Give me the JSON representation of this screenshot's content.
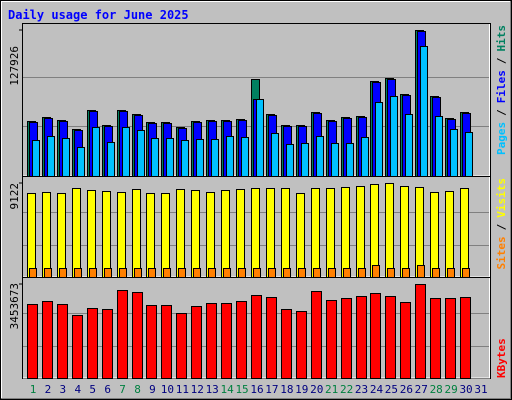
{
  "chart_data": [
    {
      "type": "bar",
      "title": "Daily usage for June 2025",
      "legend_separator": "/",
      "ylim": [
        0,
        127926
      ],
      "yticks": [
        127926
      ],
      "series": [
        {
          "name": "Hits",
          "color": "#008060",
          "values": [
            48191,
            51696,
            49067,
            41181,
            57829,
            44686,
            57829,
            54324,
            47315,
            47315,
            42934,
            48191,
            49067,
            49067,
            49943,
            84991,
            54324,
            44686,
            44686,
            56077,
            49067,
            51696,
            52572,
            83239,
            85867,
            71848,
            127926,
            70096,
            50820,
            56077,
            null
          ]
        },
        {
          "name": "Files",
          "color": "#0000ff",
          "values": [
            47315,
            50820,
            48191,
            40305,
            56953,
            43810,
            56953,
            53448,
            46439,
            46439,
            42058,
            47315,
            48191,
            48191,
            49067,
            67467,
            53448,
            43810,
            43810,
            55201,
            48191,
            50820,
            51696,
            82363,
            84991,
            70972,
            127050,
            69220,
            49943,
            55201,
            null
          ]
        },
        {
          "name": "Pages",
          "color": "#00c0ff",
          "values": [
            31543,
            35048,
            33296,
            25410,
            42934,
            29791,
            42934,
            40305,
            33296,
            33296,
            31543,
            32419,
            32419,
            35048,
            34172,
            67467,
            37677,
            28038,
            28915,
            35048,
            28915,
            28915,
            34172,
            64839,
            70096,
            54324,
            113906,
            52572,
            41181,
            38553,
            null
          ]
        }
      ]
    },
    {
      "type": "bar",
      "ylim": [
        0,
        9122
      ],
      "yticks": [
        9122
      ],
      "series": [
        {
          "name": "Visits",
          "color": "#ffff00",
          "values": [
            8142,
            8240,
            8142,
            8633,
            8437,
            8339,
            8240,
            8535,
            8142,
            8142,
            8535,
            8437,
            8240,
            8437,
            8535,
            8633,
            8633,
            8633,
            8142,
            8633,
            8633,
            8731,
            8829,
            9025,
            9122,
            8829,
            8731,
            8240,
            8339,
            8633,
            null
          ]
        },
        {
          "name": "Sites",
          "color": "#ff8000",
          "values": [
            883,
            883,
            883,
            883,
            883,
            883,
            883,
            883,
            883,
            883,
            883,
            883,
            883,
            883,
            883,
            883,
            883,
            883,
            883,
            883,
            883,
            883,
            883,
            1177,
            883,
            883,
            1177,
            883,
            883,
            883,
            null
          ]
        }
      ]
    },
    {
      "type": "bar",
      "ylim": [
        0,
        3453673
      ],
      "yticks": [
        3453673
      ],
      "categories": [
        "1",
        "2",
        "3",
        "4",
        "5",
        "6",
        "7",
        "8",
        "9",
        "10",
        "11",
        "12",
        "13",
        "14",
        "15",
        "16",
        "17",
        "18",
        "19",
        "20",
        "21",
        "22",
        "23",
        "24",
        "25",
        "26",
        "27",
        "28",
        "29",
        "30",
        "31"
      ],
      "label_colors": [
        "#008040",
        "#000080",
        "#000080",
        "#000080",
        "#000080",
        "#000080",
        "#008040",
        "#008040",
        "#000080",
        "#000080",
        "#000080",
        "#000080",
        "#000080",
        "#008040",
        "#008040",
        "#000080",
        "#000080",
        "#000080",
        "#000080",
        "#000080",
        "#008040",
        "#008040",
        "#000080",
        "#000080",
        "#000080",
        "#000080",
        "#000080",
        "#008040",
        "#008040",
        "#000080",
        "#000080"
      ],
      "series": [
        {
          "name": "KBytes",
          "color": "#ff0000",
          "values": [
            2710928,
            2822336,
            2710928,
            2302432,
            2562384,
            2525248,
            3230832,
            3156560,
            2673792,
            2673792,
            2376704,
            2636656,
            2748064,
            2748064,
            2822336,
            3045152,
            2970880,
            2525248,
            2450976,
            3193696,
            2859472,
            2933744,
            3008016,
            3119424,
            3008016,
            2784608,
            3453673,
            2933744,
            2933744,
            2970880,
            null
          ]
        }
      ]
    }
  ]
}
